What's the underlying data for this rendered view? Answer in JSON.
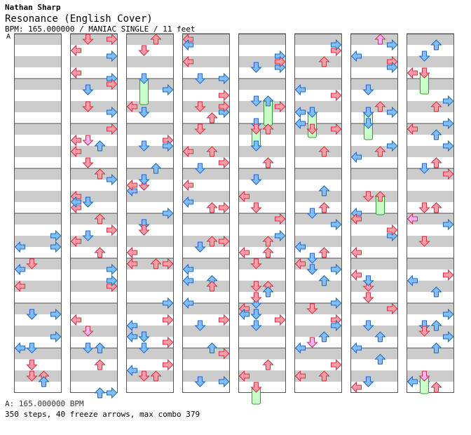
{
  "header": {
    "artist": "Nathan Sharp",
    "title": "Resonance (English Cover)",
    "meta": "BPM: 165.000000 / MANIAC SINGLE / 11 feet",
    "bpm_marker": "A"
  },
  "footer": {
    "bpm_line": "A: 165.000000 BPM",
    "stats_line": "350 steps, 40 freeze arrows, max combo 379"
  },
  "colors": {
    "stripe": "#cccccc",
    "panel_border": "#555555",
    "red_arrow": "#ff9aa8",
    "red_arrow_stroke": "#cc3344",
    "blue_arrow": "#7ec0ff",
    "blue_arrow_stroke": "#2266bb",
    "pink_arrow": "#ffb0ff",
    "freeze_body": "#c8ffc8",
    "freeze_stroke": "#339933"
  },
  "chart_data": {
    "type": "stepchart",
    "columns": 8,
    "measures_per_column": 8,
    "lanes": [
      "left",
      "down",
      "up",
      "right"
    ],
    "first_column_empty_measures": 4,
    "total_steps": 350,
    "freeze_arrows": 40,
    "max_combo": 379,
    "bpm": 165.0
  }
}
